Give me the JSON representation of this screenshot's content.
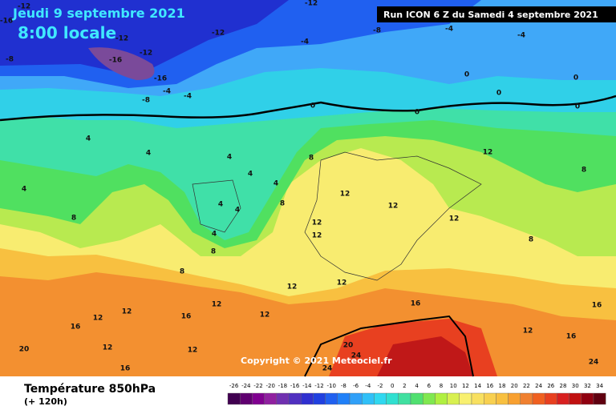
{
  "header": {
    "date": "Jeudi 9 septembre 2021",
    "time": "8:00 locale",
    "run": "Run ICON 6 Z du Samedi 4 septembre 2021"
  },
  "copyright": "Copyright © 2021 Meteociel.fr",
  "footer": {
    "title": "Température 850hPa",
    "lead": "(+ 120h)"
  },
  "scale": {
    "labels": [
      -26,
      -24,
      -22,
      -20,
      -18,
      -16,
      -14,
      -12,
      -10,
      -8,
      -6,
      -4,
      -2,
      0,
      2,
      4,
      6,
      8,
      10,
      12,
      14,
      16,
      18,
      20,
      22,
      24,
      26,
      28,
      30,
      32,
      34
    ],
    "colors": [
      "#400050",
      "#600070",
      "#800090",
      "#9020a0",
      "#7030b0",
      "#5030c0",
      "#3030d0",
      "#2040e0",
      "#2060f0",
      "#2080f8",
      "#30a0f8",
      "#30c0f8",
      "#30d8f0",
      "#30e0d0",
      "#40e0a0",
      "#50e070",
      "#80e850",
      "#b0f040",
      "#d8f050",
      "#f8f070",
      "#f8e060",
      "#f8d050",
      "#f8c040",
      "#f8a030",
      "#f08030",
      "#f06020",
      "#e84020",
      "#d82020",
      "#c01010",
      "#900010",
      "#600010"
    ]
  },
  "contour_labels": [
    -16,
    -12,
    -12,
    -12,
    -12,
    -8,
    -12,
    -16,
    -8,
    -16,
    -4,
    -4,
    -8,
    -4,
    -4,
    -4,
    0,
    0,
    0,
    0,
    0,
    0,
    4,
    4,
    4,
    4,
    4,
    4,
    4,
    4,
    4,
    8,
    8,
    8,
    8,
    8,
    8,
    8,
    12,
    12,
    12,
    12,
    12,
    12,
    12,
    12,
    12,
    12,
    12,
    12,
    12,
    12,
    12,
    16,
    16,
    16,
    16,
    16,
    16,
    20,
    20,
    24,
    24,
    24
  ]
}
